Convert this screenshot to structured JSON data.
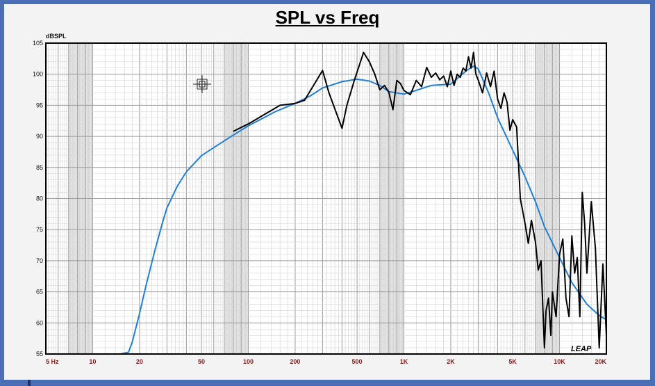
{
  "colors": {
    "background_frame": "#4a6fb5",
    "panel": "#f3f3f3",
    "measured": "#000000",
    "model": "#1e7fd6",
    "x_tick_text": "#8b1a1a"
  },
  "chart_data": {
    "type": "line",
    "title": "SPL vs Freq",
    "ylabel": "dBSPL",
    "xlabel": "",
    "x_scale": "log",
    "xlim": [
      5,
      20000
    ],
    "ylim": [
      55,
      105
    ],
    "y_ticks": [
      105,
      100,
      95,
      90,
      85,
      80,
      75,
      70,
      65,
      60,
      55
    ],
    "x_ticks": [
      {
        "value": 5,
        "label": "5  Hz"
      },
      {
        "value": 10,
        "label": "10"
      },
      {
        "value": 20,
        "label": "20"
      },
      {
        "value": 50,
        "label": "50"
      },
      {
        "value": 100,
        "label": "100"
      },
      {
        "value": 200,
        "label": "200"
      },
      {
        "value": 500,
        "label": "500"
      },
      {
        "value": 1000,
        "label": "1K"
      },
      {
        "value": 2000,
        "label": "2K"
      },
      {
        "value": 5000,
        "label": "5K"
      },
      {
        "value": 10000,
        "label": "10K"
      },
      {
        "value": 20000,
        "label": "20K"
      }
    ],
    "grid": true,
    "corner_logo": "LEAP",
    "series": [
      {
        "color": "#1e7fd6",
        "x": [
          5,
          10,
          15,
          17,
          18,
          20,
          22,
          25,
          28,
          30,
          35,
          40,
          50,
          60,
          80,
          100,
          150,
          200,
          250,
          300,
          400,
          500,
          600,
          700,
          800,
          1000,
          1200,
          1500,
          2000,
          2500,
          2800,
          3000,
          3500,
          4000,
          5000,
          6000,
          7000,
          8000,
          10000,
          12000,
          15000,
          18000,
          20000
        ],
        "y": [
          55,
          55,
          55,
          55.3,
          57,
          61.5,
          66,
          71.5,
          76,
          78.5,
          82,
          84.3,
          86.9,
          88.2,
          90.2,
          91.7,
          94,
          95.3,
          96.5,
          97.8,
          98.8,
          99.2,
          98.9,
          98.2,
          97.2,
          96.8,
          97.4,
          98.2,
          98.4,
          100.5,
          101.3,
          100.9,
          97,
          93,
          87.8,
          83.5,
          79.5,
          75.5,
          70.5,
          66.5,
          63,
          61.2,
          60.5
        ]
      },
      {
        "color": "#000000",
        "x": [
          80,
          100,
          160,
          200,
          230,
          300,
          330,
          400,
          430,
          480,
          550,
          600,
          650,
          700,
          750,
          800,
          850,
          900,
          950,
          1000,
          1100,
          1200,
          1300,
          1400,
          1500,
          1600,
          1700,
          1800,
          1900,
          2000,
          2100,
          2200,
          2300,
          2400,
          2500,
          2600,
          2700,
          2800,
          2900,
          3000,
          3200,
          3400,
          3600,
          3800,
          4000,
          4200,
          4400,
          4600,
          4800,
          5000,
          5300,
          5600,
          6000,
          6300,
          6600,
          7000,
          7300,
          7600,
          8000,
          8200,
          8500,
          8800,
          9000,
          9500,
          10000,
          10500,
          11000,
          11500,
          12000,
          12500,
          13000,
          13500,
          14000,
          14500,
          15000,
          16000,
          17000,
          18000,
          19000,
          20000
        ],
        "y": [
          90.8,
          92,
          95,
          95.3,
          95.8,
          100.6,
          97,
          91.3,
          95,
          99,
          103.5,
          102,
          100,
          97.5,
          98.2,
          97.1,
          94.3,
          99,
          98.5,
          97.4,
          96.7,
          99,
          98,
          101.1,
          99.5,
          100.2,
          99.1,
          99.7,
          98,
          100.5,
          98.2,
          100,
          99.5,
          101,
          100.5,
          102.8,
          101,
          103.5,
          100,
          99.1,
          97,
          100.2,
          98,
          100.5,
          96,
          94.5,
          97,
          95.5,
          91,
          92.7,
          91.5,
          80,
          76,
          72.8,
          76.5,
          73,
          68.5,
          70,
          56,
          62,
          64,
          58,
          65,
          61,
          71,
          73.5,
          64,
          61,
          74,
          68,
          70.5,
          61,
          81,
          76,
          68,
          79.5,
          72,
          56,
          69.5,
          58
        ]
      }
    ]
  }
}
